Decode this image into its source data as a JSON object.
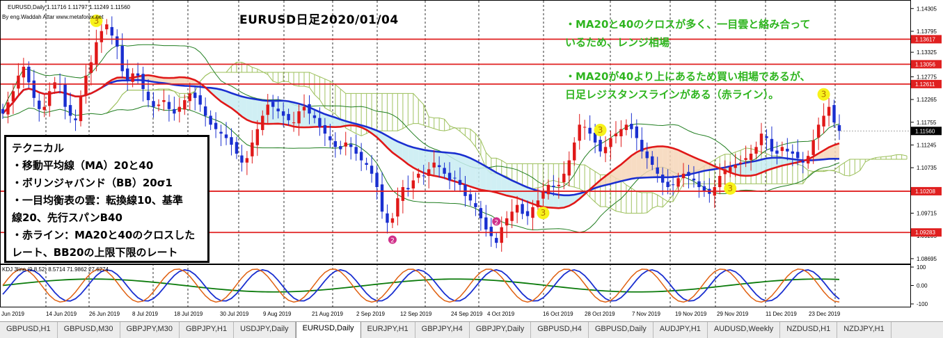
{
  "header": {
    "symbol_line": "EURUSD,Daily  1.11716 1.11797 1.11249 1.11560",
    "author_line": "By eng.Waddah Attar  www.metaforex.net"
  },
  "title": "EURUSD日足2020/01/04",
  "notes": [
    "・MA20と40のクロスが多く、一目雲と絡み合って",
    "いるため、レンジ相場",
    "・MA20が40より上にあるため買い相場であるが、",
    "日足レジスタンスラインがある（赤ライン）。"
  ],
  "technical_box": {
    "lines": [
      "テクニカル",
      "・移動平均線（MA）20と40",
      "・ボリンジャバンド（BB）20σ1",
      "・一目均衡表の雲：転換線10、基準",
      "線20、先行スパンB40",
      "・赤ライン：MA20と40のクロスした",
      "レート、BB20の上限下限のレート"
    ]
  },
  "oscillator": {
    "label": "KDJ 3line (9,8,52) 8.5714 71.9862 27.6274",
    "axis_ticks": [
      "100",
      "0.00",
      "-100"
    ]
  },
  "price_axis": {
    "ticks": [
      "1.14305",
      "1.13795",
      "1.13325",
      "1.12775",
      "1.12265",
      "1.11755",
      "1.11245",
      "1.10735",
      "1.10225",
      "1.09715",
      "1.09205",
      "1.08695"
    ],
    "current_price": "1.11560",
    "current_color": "#000000"
  },
  "resistance_lines": {
    "color": "#e02020",
    "levels": [
      "1.13617",
      "1.13056",
      "1.12611",
      "1.10208",
      "1.09283"
    ]
  },
  "date_axis": [
    "Jun 2019",
    "14 Jun 2019",
    "26 Jun 2019",
    "8 Jul 2019",
    "18 Jul 2019",
    "30 Jul 2019",
    "9 Aug 2019",
    "21 Aug 2019",
    "2 Sep 2019",
    "12 Sep 2019",
    "24 Sep 2019",
    "4 Oct 2019",
    "16 Oct 2019",
    "28 Oct 2019",
    "7 Nov 2019",
    "19 Nov 2019",
    "29 Nov 2019",
    "11 Dec 2019",
    "23 Dec 2019"
  ],
  "markers": [
    {
      "label": "3",
      "color": "yellow"
    },
    {
      "label": "2",
      "color": "magenta"
    },
    {
      "label": "2",
      "color": "magenta"
    },
    {
      "label": "3",
      "color": "yellow"
    },
    {
      "label": "3",
      "color": "yellow"
    },
    {
      "label": "3",
      "color": "yellow"
    },
    {
      "label": "3",
      "color": "yellow"
    }
  ],
  "tabs": [
    {
      "label": "GBPUSD,H1",
      "active": false
    },
    {
      "label": "GBPUSD,M30",
      "active": false
    },
    {
      "label": "GBPJPY,M30",
      "active": false
    },
    {
      "label": "GBPJPY,H1",
      "active": false
    },
    {
      "label": "USDJPY,Daily",
      "active": false
    },
    {
      "label": "EURUSD,Daily",
      "active": true
    },
    {
      "label": "EURJPY,H1",
      "active": false
    },
    {
      "label": "GBPJPY,H4",
      "active": false
    },
    {
      "label": "GBPJPY,Daily",
      "active": false
    },
    {
      "label": "GBPUSD,H4",
      "active": false
    },
    {
      "label": "GBPUSD,Daily",
      "active": false
    },
    {
      "label": "AUDJPY,H1",
      "active": false
    },
    {
      "label": "AUDUSD,Weekly",
      "active": false
    },
    {
      "label": "NZDUSD,H1",
      "active": false
    },
    {
      "label": "NZDJPY,H1",
      "active": false
    }
  ],
  "colors": {
    "bull": "#e01818",
    "bear": "#1a2fd0",
    "ma20": "#e01818",
    "ma40": "#1a2fd0",
    "bollinger": "#1f7d1f",
    "cloud_bull": "#f6d6b8",
    "cloud_bear": "#c8ecf2",
    "ichimoku_cloud_lines": "#9bbf5a",
    "note_green": "#2fb51f"
  },
  "chart_data": {
    "type": "candlestick",
    "symbol": "EURUSD",
    "timeframe": "Daily",
    "ylim": [
      1.086,
      1.1445
    ],
    "last_ohlc": {
      "open": 1.11716,
      "high": 1.11797,
      "low": 1.11249,
      "close": 1.1156
    },
    "close_series": [
      1.1195,
      1.122,
      1.1245,
      1.128,
      1.13,
      1.1265,
      1.123,
      1.1205,
      1.121,
      1.1245,
      1.1265,
      1.126,
      1.121,
      1.119,
      1.118,
      1.1235,
      1.128,
      1.131,
      1.1355,
      1.138,
      1.1395,
      1.137,
      1.1345,
      1.129,
      1.127,
      1.1285,
      1.128,
      1.125,
      1.1225,
      1.121,
      1.1215,
      1.1225,
      1.1205,
      1.1195,
      1.121,
      1.1225,
      1.124,
      1.123,
      1.1215,
      1.119,
      1.117,
      1.116,
      1.115,
      1.114,
      1.1125,
      1.1105,
      1.1085,
      1.1095,
      1.113,
      1.116,
      1.119,
      1.1215,
      1.121,
      1.12,
      1.119,
      1.118,
      1.1175,
      1.12,
      1.121,
      1.1195,
      1.1185,
      1.1165,
      1.115,
      1.1135,
      1.112,
      1.1115,
      1.113,
      1.112,
      1.1105,
      1.109,
      1.108,
      1.106,
      1.103,
      1.0975,
      1.095,
      1.096,
      1.1005,
      1.103,
      1.1025,
      1.1045,
      1.106,
      1.1055,
      1.107,
      1.1085,
      1.1075,
      1.106,
      1.1045,
      1.105,
      1.1035,
      1.101,
      1.1,
      1.0985,
      1.096,
      1.0935,
      1.092,
      1.0905,
      1.094,
      1.096,
      1.0975,
      1.099,
      1.097,
      1.0965,
      1.0985,
      1.1,
      1.102,
      1.1035,
      1.103,
      1.1035,
      1.106,
      1.109,
      1.113,
      1.117,
      1.1165,
      1.115,
      1.113,
      1.111,
      1.112,
      1.114,
      1.115,
      1.116,
      1.117,
      1.116,
      1.114,
      1.111,
      1.1095,
      1.108,
      1.106,
      1.104,
      1.103,
      1.1035,
      1.105,
      1.106,
      1.1055,
      1.1045,
      1.103,
      1.102,
      1.1015,
      1.103,
      1.1055,
      1.107,
      1.1075,
      1.108,
      1.1085,
      1.1095,
      1.1105,
      1.112,
      1.115,
      1.114,
      1.111,
      1.1105,
      1.112,
      1.111,
      1.1105,
      1.1095,
      1.1085,
      1.11,
      1.1135,
      1.117,
      1.119,
      1.121,
      1.1175,
      1.1156
    ]
  }
}
